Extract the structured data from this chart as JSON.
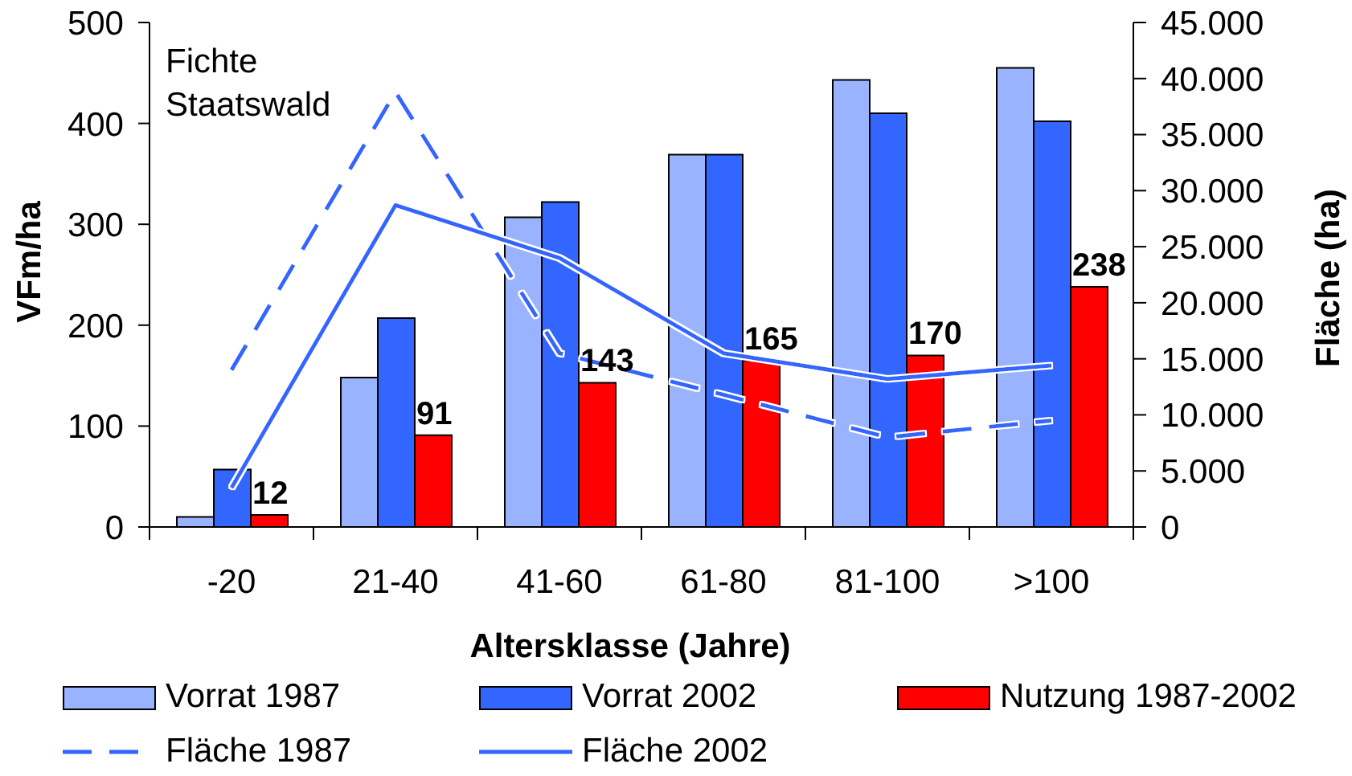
{
  "chart_data": {
    "type": "bar",
    "xlabel": "Altersklasse (Jahre)",
    "ylabel": "VFm/ha",
    "y2label": "Fläche (ha)",
    "annotations": [
      "Fichte Staatswald"
    ],
    "categories": [
      "-20",
      "21-40",
      "41-60",
      "61-80",
      "81-100",
      ">100"
    ],
    "series": [
      {
        "name": "Vorrat 1987",
        "color": "#99b3ff",
        "values": [
          10,
          148,
          307,
          369,
          443,
          455
        ]
      },
      {
        "name": "Vorrat 2002",
        "color": "#3366ff",
        "values": [
          57,
          207,
          322,
          369,
          410,
          402
        ]
      },
      {
        "name": "Nutzung 1987-2002",
        "color": "#ff0000",
        "values": [
          12,
          91,
          143,
          165,
          170,
          238
        ],
        "value_labels": [
          "12",
          "91",
          "143",
          "165",
          "170",
          "238"
        ]
      },
      {
        "name": "Fläche 1987",
        "type": "line",
        "axis": "y2",
        "color": "#3366ff",
        "line_style": "dashed",
        "values": [
          14000,
          38800,
          15500,
          11800,
          8000,
          9500
        ]
      },
      {
        "name": "Fläche 2002",
        "type": "line",
        "axis": "y2",
        "color": "#3366ff",
        "line_style": "solid",
        "values": [
          3500,
          28700,
          24000,
          15500,
          13200,
          14400
        ]
      }
    ],
    "ylim": [
      0,
      500
    ],
    "yticks": [
      0,
      100,
      200,
      300,
      400,
      500
    ],
    "y2lim": [
      0,
      45000
    ],
    "y2ticks": [
      0,
      {
        "value": 5000,
        "label": "5.000"
      },
      {
        "value": 10000,
        "label": "10.000"
      },
      {
        "value": 15000,
        "label": "15.000"
      },
      {
        "value": 20000,
        "label": "20.000"
      },
      {
        "value": 25000,
        "label": "25.000"
      },
      {
        "value": 30000,
        "label": "30.000"
      },
      {
        "value": 35000,
        "label": "35.000"
      },
      {
        "value": 40000,
        "label": "40.000"
      },
      {
        "value": 45000,
        "label": "45.000"
      }
    ],
    "legend": "bottom",
    "marker": "none"
  }
}
